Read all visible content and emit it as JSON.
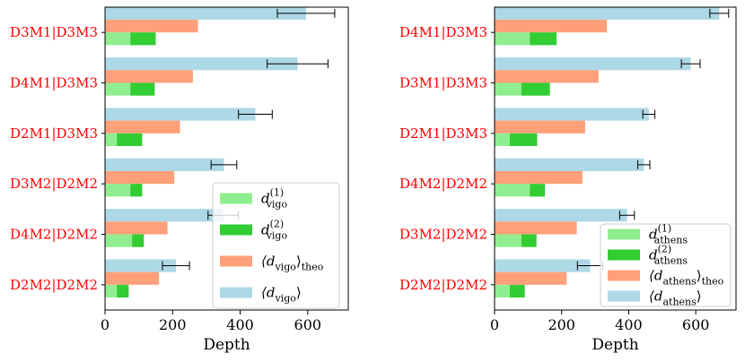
{
  "chart_data": [
    {
      "type": "bar",
      "orientation": "horizontal",
      "categories": [
        "D3M1|D3M3",
        "D4M1|D3M3",
        "D2M1|D3M3",
        "D3M2|D2M2",
        "D4M2|D2M2",
        "D2M2|D2M2"
      ],
      "series": [
        {
          "name": "d_vigo^(1)",
          "legend_main": "d",
          "legend_sub": "vigo",
          "legend_sup": "(1)",
          "color": "#90ee90",
          "values": [
            75,
            75,
            35,
            75,
            80,
            35
          ]
        },
        {
          "name": "d_vigo^(2)",
          "legend_main": "d",
          "legend_sub": "vigo",
          "legend_sup": "(2)",
          "color": "#32cd32",
          "values": [
            75,
            72,
            75,
            35,
            35,
            35
          ]
        },
        {
          "name": "<d_vigo>_theo",
          "legend_main": "⟨d",
          "legend_sub": "vigo",
          "legend_post": "⟩",
          "legend_sub2": "theo",
          "color": "#ffa07a",
          "values": [
            275,
            260,
            222,
            205,
            185,
            160
          ]
        },
        {
          "name": "<d_vigo>",
          "legend_main": "⟨d",
          "legend_sub": "vigo",
          "legend_post": "⟩",
          "color": "#add8e6",
          "values": [
            595,
            570,
            445,
            352,
            350,
            210
          ],
          "errors": [
            85,
            90,
            50,
            38,
            45,
            40
          ]
        }
      ],
      "xlabel": "Depth",
      "xlim": [
        0,
        720
      ],
      "xticks": [
        "0",
        "200",
        "400",
        "600"
      ],
      "xtick_values": [
        0,
        200,
        400,
        600
      ],
      "legend_position": "lower-right",
      "grid": false
    },
    {
      "type": "bar",
      "orientation": "horizontal",
      "categories": [
        "D4M1|D3M3",
        "D3M1|D3M3",
        "D2M1|D3M3",
        "D4M2|D2M2",
        "D3M2|D2M2",
        "D2M2|D2M2"
      ],
      "series": [
        {
          "name": "d_athens^(1)",
          "legend_main": "d",
          "legend_sub": "athens",
          "legend_sup": "(1)",
          "color": "#90ee90",
          "values": [
            105,
            80,
            45,
            105,
            80,
            45
          ]
        },
        {
          "name": "d_athens^(2)",
          "legend_main": "d",
          "legend_sub": "athens",
          "legend_sup": "(2)",
          "color": "#32cd32",
          "values": [
            80,
            85,
            82,
            45,
            45,
            45
          ]
        },
        {
          "name": "<d_athens>_theo",
          "legend_main": "⟨d",
          "legend_sub": "athens",
          "legend_post": "⟩",
          "legend_sub2": "theo",
          "color": "#ffa07a",
          "values": [
            335,
            310,
            270,
            262,
            245,
            215
          ]
        },
        {
          "name": "<d_athens>",
          "legend_main": "⟨d",
          "legend_sub": "athens",
          "legend_post": "⟩",
          "color": "#add8e6",
          "values": [
            670,
            585,
            460,
            445,
            395,
            285
          ],
          "errors": [
            28,
            28,
            18,
            18,
            22,
            38
          ]
        }
      ],
      "xlabel": "Depth",
      "xlim": [
        0,
        720
      ],
      "xticks": [
        "0",
        "200",
        "400",
        "600"
      ],
      "xtick_values": [
        0,
        200,
        400,
        600
      ],
      "legend_position": "lower-right",
      "grid": false
    }
  ]
}
